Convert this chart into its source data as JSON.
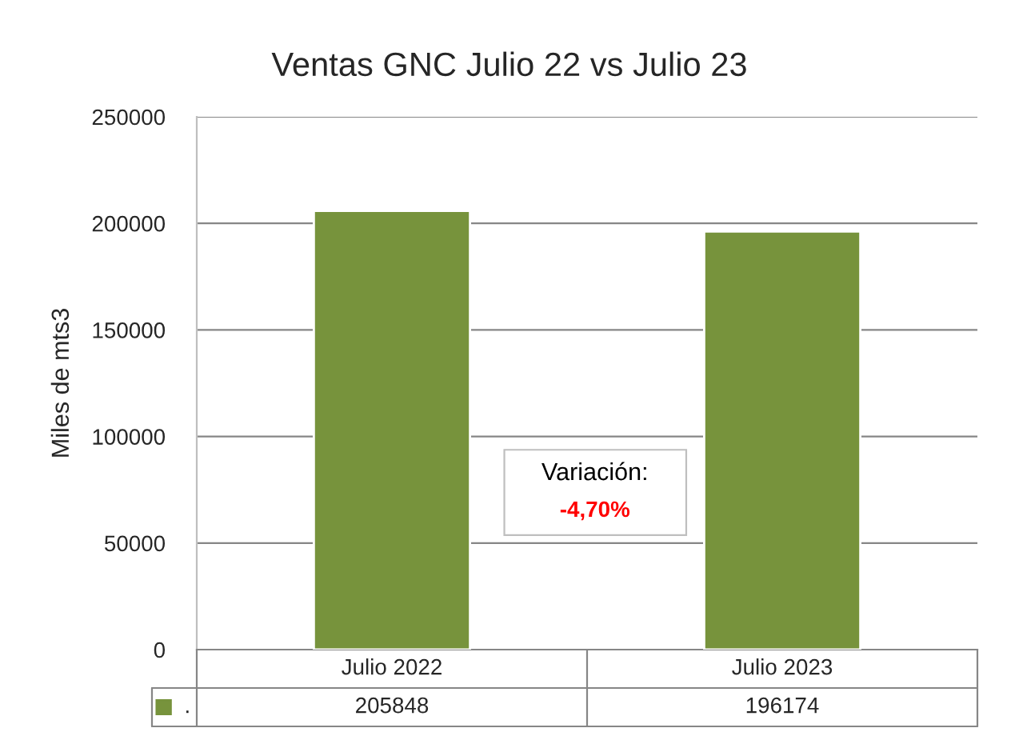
{
  "chart_data": {
    "type": "bar",
    "title": "Ventas GNC Julio 22 vs Julio 23",
    "ylabel": "Miles de mts3",
    "categories": [
      "Julio 2022",
      "Julio 2023"
    ],
    "series": [
      {
        "name": ".",
        "color": "#77933c",
        "values": [
          205848,
          196174
        ]
      }
    ],
    "ylim": [
      0,
      250000
    ],
    "yticks": [
      0,
      50000,
      100000,
      150000,
      200000,
      250000
    ],
    "grid": "y",
    "data_labels": true,
    "annotations": [
      "Variación:",
      "-4,70%"
    ]
  }
}
